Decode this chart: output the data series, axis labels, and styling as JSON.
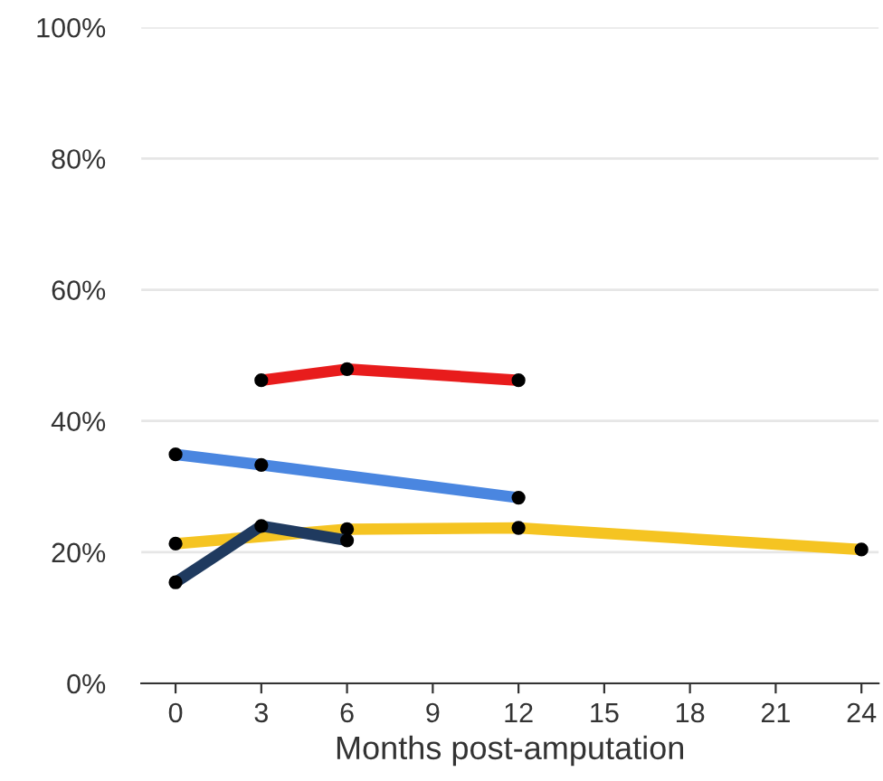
{
  "chart_data": {
    "type": "line",
    "xlabel": "Months post-amputation",
    "xlim": [
      -1.2,
      24.6
    ],
    "xticks": [
      0,
      3,
      6,
      9,
      12,
      15,
      18,
      21,
      24
    ],
    "ylim": [
      0,
      100
    ],
    "yticks": [
      {
        "value": 0,
        "label": "0%"
      },
      {
        "value": 20,
        "label": "20%"
      },
      {
        "value": 40,
        "label": "40%"
      },
      {
        "value": 60,
        "label": "60%"
      },
      {
        "value": 80,
        "label": "80%"
      },
      {
        "value": 100,
        "label": "100%"
      }
    ],
    "grid": "y",
    "marker": "circle",
    "line_style": "solid",
    "series": [
      {
        "color": "#e81c1c",
        "x": [
          3,
          6,
          12
        ],
        "values": [
          46.2,
          47.9,
          46.2
        ]
      },
      {
        "color": "#4a86e0",
        "x": [
          0,
          3,
          12
        ],
        "values": [
          34.9,
          33.3,
          28.3
        ]
      },
      {
        "color": "#f5c422",
        "x": [
          0,
          6,
          12,
          24
        ],
        "values": [
          21.3,
          23.5,
          23.7,
          20.4
        ]
      },
      {
        "color": "#1f3a5f",
        "x": [
          0,
          3,
          6
        ],
        "values": [
          15.4,
          24.0,
          21.8
        ]
      }
    ]
  }
}
